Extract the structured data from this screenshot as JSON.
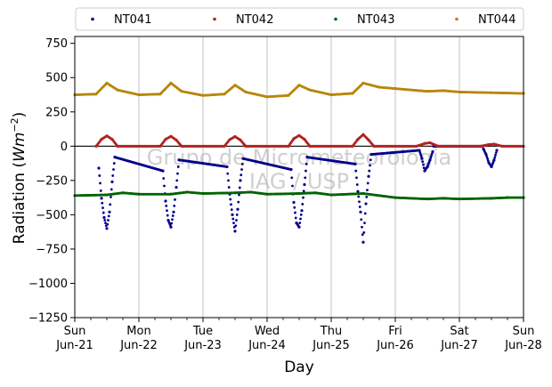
{
  "chart_data": {
    "type": "scatter",
    "title": "",
    "xlabel": "Day",
    "ylabel_prefix": "Radiation (",
    "ylabel_unit": "Wm",
    "ylabel_exp": "−2",
    "ylabel_suffix": ")",
    "ylim": [
      -1250,
      800
    ],
    "yticks": [
      750,
      500,
      250,
      0,
      -250,
      -500,
      -750,
      -1000,
      -1250
    ],
    "ytick_labels": [
      "750",
      "500",
      "250",
      "0",
      "−250",
      "−500",
      "−750",
      "−1000",
      "−1250"
    ],
    "xlim": [
      "2020-06-21",
      "2020-06-28"
    ],
    "xticks": [
      {
        "line1": "Sun",
        "line2": "Jun-21"
      },
      {
        "line1": "Mon",
        "line2": "Jun-22"
      },
      {
        "line1": "Tue",
        "line2": "Jun-23"
      },
      {
        "line1": "Wed",
        "line2": "Jun-24"
      },
      {
        "line1": "Thu",
        "line2": "Jun-25"
      },
      {
        "line1": "Fri",
        "line2": "Jun-26"
      },
      {
        "line1": "Sat",
        "line2": "Jun-27"
      },
      {
        "line1": "Sun",
        "line2": "Jun-28"
      }
    ],
    "grid": "vertical",
    "zero_line": true,
    "legend_placement": "top-outside",
    "watermark": [
      "Grupo de Micrometeorologia",
      "IAG / USP"
    ],
    "series": [
      {
        "name": "NT041",
        "color": "#00008b",
        "points": [
          [
            "2020-06-21 09:00",
            -160
          ],
          [
            "2020-06-21 10:00",
            -380
          ],
          [
            "2020-06-21 11:00",
            -520
          ],
          [
            "2020-06-21 12:00",
            -600
          ],
          [
            "2020-06-21 13:00",
            -480
          ],
          [
            "2020-06-21 14:00",
            -260
          ],
          [
            "2020-06-21 15:00",
            -80
          ],
          [
            "2020-06-22 09:00",
            -180
          ],
          [
            "2020-06-22 10:00",
            -400
          ],
          [
            "2020-06-22 11:00",
            -540
          ],
          [
            "2020-06-22 12:00",
            -590
          ],
          [
            "2020-06-22 13:00",
            -480
          ],
          [
            "2020-06-22 14:00",
            -300
          ],
          [
            "2020-06-22 15:00",
            -100
          ],
          [
            "2020-06-23 09:00",
            -150
          ],
          [
            "2020-06-23 10:00",
            -350
          ],
          [
            "2020-06-23 11:00",
            -500
          ],
          [
            "2020-06-23 12:00",
            -620
          ],
          [
            "2020-06-23 13:00",
            -460
          ],
          [
            "2020-06-23 14:00",
            -250
          ],
          [
            "2020-06-23 15:00",
            -90
          ],
          [
            "2020-06-24 09:00",
            -170
          ],
          [
            "2020-06-24 10:00",
            -410
          ],
          [
            "2020-06-24 11:00",
            -560
          ],
          [
            "2020-06-24 12:00",
            -590
          ],
          [
            "2020-06-24 13:00",
            -470
          ],
          [
            "2020-06-24 14:00",
            -280
          ],
          [
            "2020-06-24 15:00",
            -80
          ],
          [
            "2020-06-25 09:00",
            -130
          ],
          [
            "2020-06-25 10:00",
            -330
          ],
          [
            "2020-06-25 11:00",
            -480
          ],
          [
            "2020-06-25 12:00",
            -700
          ],
          [
            "2020-06-25 13:00",
            -420
          ],
          [
            "2020-06-25 14:00",
            -220
          ],
          [
            "2020-06-25 15:00",
            -60
          ],
          [
            "2020-06-26 09:00",
            -30
          ],
          [
            "2020-06-26 10:00",
            -90
          ],
          [
            "2020-06-26 11:00",
            -180
          ],
          [
            "2020-06-26 12:00",
            -150
          ],
          [
            "2020-06-26 13:00",
            -100
          ],
          [
            "2020-06-26 14:00",
            -40
          ],
          [
            "2020-06-27 09:00",
            -20
          ],
          [
            "2020-06-27 10:00",
            -60
          ],
          [
            "2020-06-27 11:00",
            -120
          ],
          [
            "2020-06-27 12:00",
            -150
          ],
          [
            "2020-06-27 13:00",
            -100
          ],
          [
            "2020-06-27 14:00",
            -30
          ]
        ]
      },
      {
        "name": "NT042",
        "color": "#b22222",
        "points": [
          [
            "2020-06-21 08:00",
            0
          ],
          [
            "2020-06-21 10:00",
            50
          ],
          [
            "2020-06-21 12:00",
            75
          ],
          [
            "2020-06-21 14:00",
            50
          ],
          [
            "2020-06-21 16:00",
            0
          ],
          [
            "2020-06-22 08:00",
            0
          ],
          [
            "2020-06-22 10:00",
            50
          ],
          [
            "2020-06-22 12:00",
            72
          ],
          [
            "2020-06-22 14:00",
            45
          ],
          [
            "2020-06-22 16:00",
            0
          ],
          [
            "2020-06-23 08:00",
            0
          ],
          [
            "2020-06-23 10:00",
            48
          ],
          [
            "2020-06-23 12:00",
            70
          ],
          [
            "2020-06-23 14:00",
            45
          ],
          [
            "2020-06-23 16:00",
            0
          ],
          [
            "2020-06-24 08:00",
            0
          ],
          [
            "2020-06-24 10:00",
            55
          ],
          [
            "2020-06-24 12:00",
            78
          ],
          [
            "2020-06-24 14:00",
            50
          ],
          [
            "2020-06-24 16:00",
            0
          ],
          [
            "2020-06-25 08:00",
            0
          ],
          [
            "2020-06-25 10:00",
            50
          ],
          [
            "2020-06-25 12:00",
            85
          ],
          [
            "2020-06-25 14:00",
            45
          ],
          [
            "2020-06-25 16:00",
            0
          ],
          [
            "2020-06-26 08:00",
            0
          ],
          [
            "2020-06-26 11:00",
            20
          ],
          [
            "2020-06-26 13:00",
            25
          ],
          [
            "2020-06-26 16:00",
            0
          ],
          [
            "2020-06-27 08:00",
            0
          ],
          [
            "2020-06-27 11:00",
            12
          ],
          [
            "2020-06-27 13:00",
            15
          ],
          [
            "2020-06-27 16:00",
            0
          ],
          [
            "2020-06-28 00:00",
            0
          ]
        ]
      },
      {
        "name": "NT043",
        "color": "#006400",
        "points": [
          [
            "2020-06-21 00:00",
            -360
          ],
          [
            "2020-06-21 12:00",
            -355
          ],
          [
            "2020-06-21 18:00",
            -340
          ],
          [
            "2020-06-22 00:00",
            -350
          ],
          [
            "2020-06-22 12:00",
            -350
          ],
          [
            "2020-06-22 18:00",
            -335
          ],
          [
            "2020-06-23 00:00",
            -345
          ],
          [
            "2020-06-23 12:00",
            -340
          ],
          [
            "2020-06-23 18:00",
            -335
          ],
          [
            "2020-06-24 00:00",
            -350
          ],
          [
            "2020-06-24 12:00",
            -345
          ],
          [
            "2020-06-24 18:00",
            -340
          ],
          [
            "2020-06-25 00:00",
            -355
          ],
          [
            "2020-06-25 12:00",
            -345
          ],
          [
            "2020-06-25 18:00",
            -360
          ],
          [
            "2020-06-26 00:00",
            -375
          ],
          [
            "2020-06-26 12:00",
            -385
          ],
          [
            "2020-06-26 18:00",
            -380
          ],
          [
            "2020-06-27 00:00",
            -385
          ],
          [
            "2020-06-27 12:00",
            -380
          ],
          [
            "2020-06-27 18:00",
            -375
          ],
          [
            "2020-06-28 00:00",
            -375
          ]
        ]
      },
      {
        "name": "NT044",
        "color": "#b8860b",
        "points": [
          [
            "2020-06-21 00:00",
            375
          ],
          [
            "2020-06-21 08:00",
            380
          ],
          [
            "2020-06-21 12:00",
            460
          ],
          [
            "2020-06-21 16:00",
            410
          ],
          [
            "2020-06-22 00:00",
            375
          ],
          [
            "2020-06-22 08:00",
            380
          ],
          [
            "2020-06-22 12:00",
            460
          ],
          [
            "2020-06-22 16:00",
            400
          ],
          [
            "2020-06-23 00:00",
            370
          ],
          [
            "2020-06-23 08:00",
            380
          ],
          [
            "2020-06-23 12:00",
            445
          ],
          [
            "2020-06-23 16:00",
            395
          ],
          [
            "2020-06-24 00:00",
            360
          ],
          [
            "2020-06-24 08:00",
            370
          ],
          [
            "2020-06-24 12:00",
            445
          ],
          [
            "2020-06-24 16:00",
            410
          ],
          [
            "2020-06-25 00:00",
            375
          ],
          [
            "2020-06-25 08:00",
            385
          ],
          [
            "2020-06-25 12:00",
            460
          ],
          [
            "2020-06-25 18:00",
            430
          ],
          [
            "2020-06-26 00:00",
            420
          ],
          [
            "2020-06-26 12:00",
            400
          ],
          [
            "2020-06-26 18:00",
            405
          ],
          [
            "2020-06-27 00:00",
            395
          ],
          [
            "2020-06-27 12:00",
            390
          ],
          [
            "2020-06-28 00:00",
            385
          ]
        ]
      }
    ]
  }
}
